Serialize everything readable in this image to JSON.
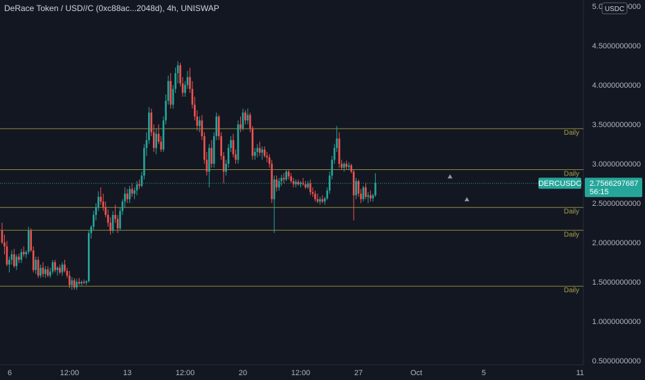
{
  "header": {
    "title": "DeRace Token / USD//C (0xc88ac...2048d), 4h, UNISWAP"
  },
  "axis": {
    "unit_badge": "USDC"
  },
  "colors": {
    "background": "#131722",
    "up": "#26a69a",
    "down": "#ef5350",
    "level_line": "#8f8a3a",
    "level_label": "#a8a04a",
    "marker": "#9598a1"
  },
  "current_price": {
    "symbol": "DERCUSDC",
    "value": "2.7566297687",
    "countdown": "56:15",
    "price": 2.7566
  },
  "chart_data": {
    "type": "candlestick",
    "title": "DeRace Token / USD//C (0xc88ac...2048d), 4h, UNISWAP",
    "xlabel": "",
    "ylabel": "",
    "ylim": [
      0.45,
      5.05
    ],
    "grid": false,
    "y_ticks": [
      {
        "v": 5.0,
        "label": "5.0000000000"
      },
      {
        "v": 4.5,
        "label": "4.5000000000"
      },
      {
        "v": 4.0,
        "label": "4.0000000000"
      },
      {
        "v": 3.5,
        "label": "3.5000000000"
      },
      {
        "v": 3.0,
        "label": "3.0000000000"
      },
      {
        "v": 2.5,
        "label": "2.5000000000"
      },
      {
        "v": 2.0,
        "label": "2.0000000000"
      },
      {
        "v": 1.5,
        "label": "1.5000000000"
      },
      {
        "v": 1.0,
        "label": "1.0000000000"
      },
      {
        "v": 0.5,
        "label": "0.5000000000"
      }
    ],
    "x_ticks": [
      {
        "i": 0,
        "label": "6"
      },
      {
        "i": 28,
        "label": "12:00"
      },
      {
        "i": 52,
        "label": "13"
      },
      {
        "i": 76,
        "label": "12:00"
      },
      {
        "i": 100,
        "label": "20"
      },
      {
        "i": 124,
        "label": "12:00"
      },
      {
        "i": 148,
        "label": "27"
      },
      {
        "i": 172,
        "label": "Oct"
      },
      {
        "i": 200,
        "label": "5"
      },
      {
        "i": 240,
        "label": "11"
      }
    ],
    "levels": [
      {
        "price": 3.45,
        "label": "Daily"
      },
      {
        "price": 2.93,
        "label": "Daily"
      },
      {
        "price": 2.45,
        "label": "Daily"
      },
      {
        "price": 2.16,
        "label": "Daily"
      },
      {
        "price": 1.45,
        "label": "Daily"
      }
    ],
    "markers": [
      {
        "i": 186,
        "price": 2.84
      },
      {
        "i": 193,
        "price": 2.55
      }
    ],
    "candles": [
      [
        2.15,
        2.25,
        1.98,
        2.0
      ],
      [
        2.0,
        2.1,
        1.85,
        1.95
      ],
      [
        1.95,
        2.02,
        1.7,
        1.72
      ],
      [
        1.72,
        1.82,
        1.62,
        1.78
      ],
      [
        1.78,
        1.9,
        1.72,
        1.85
      ],
      [
        1.85,
        1.92,
        1.68,
        1.7
      ],
      [
        1.7,
        1.85,
        1.65,
        1.82
      ],
      [
        1.82,
        1.86,
        1.74,
        1.78
      ],
      [
        1.78,
        1.92,
        1.74,
        1.88
      ],
      [
        1.88,
        1.95,
        1.82,
        1.85
      ],
      [
        1.85,
        1.9,
        1.8,
        1.88
      ],
      [
        1.88,
        2.2,
        1.85,
        2.15
      ],
      [
        2.15,
        2.18,
        1.88,
        1.9
      ],
      [
        1.9,
        1.95,
        1.62,
        1.65
      ],
      [
        1.65,
        1.82,
        1.6,
        1.78
      ],
      [
        1.78,
        1.82,
        1.55,
        1.58
      ],
      [
        1.58,
        1.72,
        1.55,
        1.68
      ],
      [
        1.68,
        1.75,
        1.56,
        1.6
      ],
      [
        1.6,
        1.7,
        1.55,
        1.66
      ],
      [
        1.66,
        1.7,
        1.56,
        1.58
      ],
      [
        1.58,
        1.68,
        1.55,
        1.63
      ],
      [
        1.63,
        1.78,
        1.6,
        1.75
      ],
      [
        1.75,
        1.78,
        1.62,
        1.65
      ],
      [
        1.65,
        1.7,
        1.58,
        1.68
      ],
      [
        1.68,
        1.72,
        1.6,
        1.62
      ],
      [
        1.62,
        1.75,
        1.58,
        1.72
      ],
      [
        1.72,
        1.78,
        1.62,
        1.64
      ],
      [
        1.64,
        1.68,
        1.55,
        1.58
      ],
      [
        1.58,
        1.64,
        1.42,
        1.46
      ],
      [
        1.46,
        1.56,
        1.4,
        1.52
      ],
      [
        1.52,
        1.55,
        1.4,
        1.43
      ],
      [
        1.43,
        1.54,
        1.4,
        1.5
      ],
      [
        1.5,
        1.55,
        1.46,
        1.48
      ],
      [
        1.48,
        1.52,
        1.45,
        1.5
      ],
      [
        1.5,
        1.53,
        1.47,
        1.49
      ],
      [
        1.49,
        1.52,
        1.46,
        1.51
      ],
      [
        1.51,
        2.15,
        1.49,
        2.12
      ],
      [
        2.12,
        2.22,
        2.05,
        2.2
      ],
      [
        2.2,
        2.4,
        2.16,
        2.35
      ],
      [
        2.35,
        2.5,
        2.28,
        2.45
      ],
      [
        2.45,
        2.65,
        2.4,
        2.58
      ],
      [
        2.58,
        2.7,
        2.48,
        2.52
      ],
      [
        2.52,
        2.62,
        2.4,
        2.45
      ],
      [
        2.45,
        2.52,
        2.32,
        2.35
      ],
      [
        2.35,
        2.42,
        2.2,
        2.25
      ],
      [
        2.25,
        2.32,
        2.1,
        2.15
      ],
      [
        2.15,
        2.4,
        2.12,
        2.35
      ],
      [
        2.35,
        2.48,
        2.25,
        2.3
      ],
      [
        2.3,
        2.35,
        2.12,
        2.18
      ],
      [
        2.18,
        2.45,
        2.15,
        2.4
      ],
      [
        2.4,
        2.55,
        2.35,
        2.52
      ],
      [
        2.52,
        2.7,
        2.45,
        2.62
      ],
      [
        2.62,
        2.68,
        2.5,
        2.55
      ],
      [
        2.55,
        2.72,
        2.5,
        2.68
      ],
      [
        2.68,
        2.75,
        2.58,
        2.62
      ],
      [
        2.62,
        2.7,
        2.55,
        2.66
      ],
      [
        2.66,
        2.78,
        2.6,
        2.74
      ],
      [
        2.74,
        2.8,
        2.68,
        2.72
      ],
      [
        2.72,
        2.9,
        2.7,
        2.85
      ],
      [
        2.85,
        3.25,
        2.8,
        3.2
      ],
      [
        3.2,
        3.4,
        3.1,
        3.3
      ],
      [
        3.3,
        3.72,
        3.25,
        3.65
      ],
      [
        3.65,
        3.7,
        3.35,
        3.4
      ],
      [
        3.4,
        3.5,
        3.15,
        3.2
      ],
      [
        3.2,
        3.45,
        3.12,
        3.38
      ],
      [
        3.38,
        3.5,
        3.25,
        3.28
      ],
      [
        3.28,
        3.35,
        3.15,
        3.18
      ],
      [
        3.18,
        3.6,
        3.15,
        3.55
      ],
      [
        3.55,
        3.88,
        3.5,
        3.8
      ],
      [
        3.8,
        4.12,
        3.75,
        4.05
      ],
      [
        4.05,
        4.15,
        3.7,
        3.75
      ],
      [
        3.75,
        4.0,
        3.7,
        3.95
      ],
      [
        3.95,
        4.22,
        3.9,
        4.15
      ],
      [
        4.15,
        4.3,
        4.02,
        4.25
      ],
      [
        4.25,
        4.28,
        3.98,
        4.02
      ],
      [
        4.02,
        4.1,
        3.85,
        3.9
      ],
      [
        3.9,
        4.05,
        3.85,
        4.0
      ],
      [
        4.0,
        4.18,
        3.95,
        4.1
      ],
      [
        4.1,
        4.22,
        3.9,
        3.95
      ],
      [
        3.95,
        4.05,
        3.7,
        3.75
      ],
      [
        3.75,
        3.85,
        3.55,
        3.6
      ],
      [
        3.6,
        3.68,
        3.42,
        3.48
      ],
      [
        3.48,
        3.6,
        3.4,
        3.55
      ],
      [
        3.55,
        3.62,
        3.3,
        3.35
      ],
      [
        3.35,
        3.4,
        3.0,
        3.05
      ],
      [
        3.05,
        3.15,
        2.85,
        2.9
      ],
      [
        2.9,
        3.25,
        2.7,
        3.2
      ],
      [
        3.2,
        3.3,
        2.95,
        3.0
      ],
      [
        3.0,
        3.4,
        2.95,
        3.35
      ],
      [
        3.35,
        3.65,
        3.3,
        3.6
      ],
      [
        3.6,
        3.62,
        3.3,
        3.35
      ],
      [
        3.35,
        3.4,
        3.05,
        3.1
      ],
      [
        3.1,
        3.15,
        2.75,
        2.9
      ],
      [
        2.9,
        3.05,
        2.85,
        3.0
      ],
      [
        3.0,
        3.25,
        2.95,
        3.2
      ],
      [
        3.2,
        3.35,
        3.15,
        3.3
      ],
      [
        3.3,
        3.38,
        3.08,
        3.12
      ],
      [
        3.12,
        3.18,
        3.0,
        3.05
      ],
      [
        3.05,
        3.55,
        3.0,
        3.5
      ],
      [
        3.5,
        3.6,
        3.4,
        3.45
      ],
      [
        3.45,
        3.7,
        3.42,
        3.65
      ],
      [
        3.65,
        3.68,
        3.5,
        3.55
      ],
      [
        3.55,
        3.7,
        3.5,
        3.62
      ],
      [
        3.62,
        3.65,
        3.4,
        3.45
      ],
      [
        3.45,
        3.48,
        3.05,
        3.1
      ],
      [
        3.1,
        3.2,
        3.05,
        3.15
      ],
      [
        3.15,
        3.25,
        3.08,
        3.2
      ],
      [
        3.2,
        3.28,
        3.1,
        3.14
      ],
      [
        3.14,
        3.22,
        3.05,
        3.18
      ],
      [
        3.18,
        3.22,
        3.08,
        3.1
      ],
      [
        3.1,
        3.15,
        3.02,
        3.08
      ],
      [
        3.08,
        3.12,
        2.95,
        3.0
      ],
      [
        3.0,
        3.05,
        2.5,
        2.55
      ],
      [
        2.55,
        2.85,
        2.12,
        2.8
      ],
      [
        2.8,
        2.85,
        2.65,
        2.7
      ],
      [
        2.7,
        2.82,
        2.66,
        2.78
      ],
      [
        2.78,
        2.86,
        2.72,
        2.82
      ],
      [
        2.82,
        2.88,
        2.75,
        2.8
      ],
      [
        2.8,
        2.92,
        2.78,
        2.9
      ],
      [
        2.9,
        2.93,
        2.8,
        2.84
      ],
      [
        2.84,
        2.88,
        2.76,
        2.78
      ],
      [
        2.78,
        2.82,
        2.7,
        2.74
      ],
      [
        2.74,
        2.8,
        2.7,
        2.77
      ],
      [
        2.77,
        2.8,
        2.72,
        2.74
      ],
      [
        2.74,
        2.78,
        2.7,
        2.76
      ],
      [
        2.76,
        2.82,
        2.72,
        2.74
      ],
      [
        2.74,
        2.78,
        2.68,
        2.7
      ],
      [
        2.7,
        2.78,
        2.68,
        2.75
      ],
      [
        2.75,
        2.8,
        2.6,
        2.64
      ],
      [
        2.64,
        2.7,
        2.58,
        2.62
      ],
      [
        2.62,
        2.66,
        2.52,
        2.55
      ],
      [
        2.55,
        2.62,
        2.5,
        2.52
      ],
      [
        2.52,
        2.58,
        2.48,
        2.55
      ],
      [
        2.55,
        2.6,
        2.5,
        2.52
      ],
      [
        2.52,
        2.58,
        2.48,
        2.56
      ],
      [
        2.56,
        2.7,
        2.54,
        2.66
      ],
      [
        2.66,
        2.9,
        2.62,
        2.85
      ],
      [
        2.85,
        3.1,
        2.8,
        3.05
      ],
      [
        3.05,
        3.25,
        3.0,
        3.2
      ],
      [
        3.2,
        3.48,
        3.15,
        3.32
      ],
      [
        3.32,
        3.4,
        2.95,
        3.0
      ],
      [
        3.0,
        3.05,
        2.92,
        2.95
      ],
      [
        2.95,
        3.02,
        2.9,
        3.0
      ],
      [
        3.0,
        3.04,
        2.92,
        2.96
      ],
      [
        2.96,
        3.02,
        2.92,
        2.98
      ],
      [
        2.98,
        3.0,
        2.88,
        2.9
      ],
      [
        2.9,
        2.92,
        2.28,
        2.6
      ],
      [
        2.6,
        2.82,
        2.55,
        2.78
      ],
      [
        2.78,
        2.8,
        2.58,
        2.62
      ],
      [
        2.62,
        2.68,
        2.5,
        2.55
      ],
      [
        2.55,
        2.72,
        2.52,
        2.7
      ],
      [
        2.7,
        2.76,
        2.55,
        2.58
      ],
      [
        2.58,
        2.64,
        2.5,
        2.6
      ],
      [
        2.6,
        2.66,
        2.52,
        2.56
      ],
      [
        2.56,
        2.62,
        2.52,
        2.6
      ],
      [
        2.6,
        2.88,
        2.58,
        2.756
      ]
    ]
  }
}
